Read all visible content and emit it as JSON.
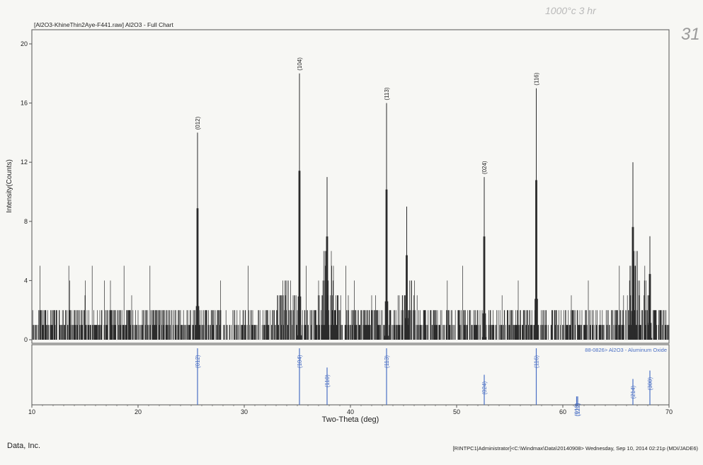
{
  "header": {
    "title": "[Al2O3-KhineThin2Aye-F441.raw] Al2O3 - Full Chart",
    "handwritten_top": "1000°c 3 hr",
    "handwritten_corner": "31"
  },
  "footer": {
    "left": "Data, Inc.",
    "right": "[RINTPC1|Administrator]<C:\\Windmax\\Data\\20140908> Wednesday, Sep 10, 2014 02:21p (MDI/JADE6)"
  },
  "colors": {
    "pattern": "#2b2b2b",
    "reference": "#4a6fc4",
    "frame": "#555555",
    "background": "#f7f7f4"
  },
  "chart_data": [
    {
      "type": "line",
      "panel": "xrd-pattern",
      "xlabel": "",
      "ylabel": "Intensity(Counts)",
      "xlim": [
        10,
        70
      ],
      "ylim": [
        0,
        20
      ],
      "yticks": [
        "0",
        "4",
        "8",
        "12",
        "16",
        "20"
      ],
      "baseline_range": [
        0,
        2
      ],
      "peaks": [
        {
          "x": 25.6,
          "y": 14,
          "label": "(012)"
        },
        {
          "x": 35.2,
          "y": 18,
          "label": "(104)"
        },
        {
          "x": 37.8,
          "y": 11,
          "label": ""
        },
        {
          "x": 43.4,
          "y": 16,
          "label": "(113)"
        },
        {
          "x": 45.3,
          "y": 9,
          "label": ""
        },
        {
          "x": 52.6,
          "y": 11,
          "label": "(024)"
        },
        {
          "x": 57.5,
          "y": 17,
          "label": "(116)"
        },
        {
          "x": 66.6,
          "y": 12,
          "label": ""
        },
        {
          "x": 68.2,
          "y": 7,
          "label": ""
        }
      ],
      "humps": [
        {
          "x": 34.0,
          "y": 4
        },
        {
          "x": 37.8,
          "y": 6
        },
        {
          "x": 45.5,
          "y": 4
        },
        {
          "x": 67.0,
          "y": 6
        }
      ]
    },
    {
      "type": "bar",
      "panel": "reference-pattern",
      "legend": "88-0826> Al2O3 - Aluminum Oxide",
      "xlabel": "Two-Theta (deg)",
      "xlim": [
        10,
        70
      ],
      "xticks": [
        "10",
        "20",
        "30",
        "40",
        "50",
        "60",
        "70"
      ],
      "lines": [
        {
          "x": 25.6,
          "rel": 0.94,
          "label": "(012)"
        },
        {
          "x": 35.2,
          "rel": 0.94,
          "label": "(104)"
        },
        {
          "x": 37.8,
          "rel": 0.62,
          "label": "(110)"
        },
        {
          "x": 43.4,
          "rel": 0.94,
          "label": "(113)"
        },
        {
          "x": 52.6,
          "rel": 0.5,
          "label": "(024)"
        },
        {
          "x": 57.5,
          "rel": 0.94,
          "label": "(116)"
        },
        {
          "x": 61.3,
          "rel": 0.14,
          "label": "(018)"
        },
        {
          "x": 61.4,
          "rel": 0.14,
          "label": "(122)"
        },
        {
          "x": 66.6,
          "rel": 0.43,
          "label": "(214)"
        },
        {
          "x": 68.2,
          "rel": 0.57,
          "label": "(300)"
        }
      ]
    }
  ]
}
